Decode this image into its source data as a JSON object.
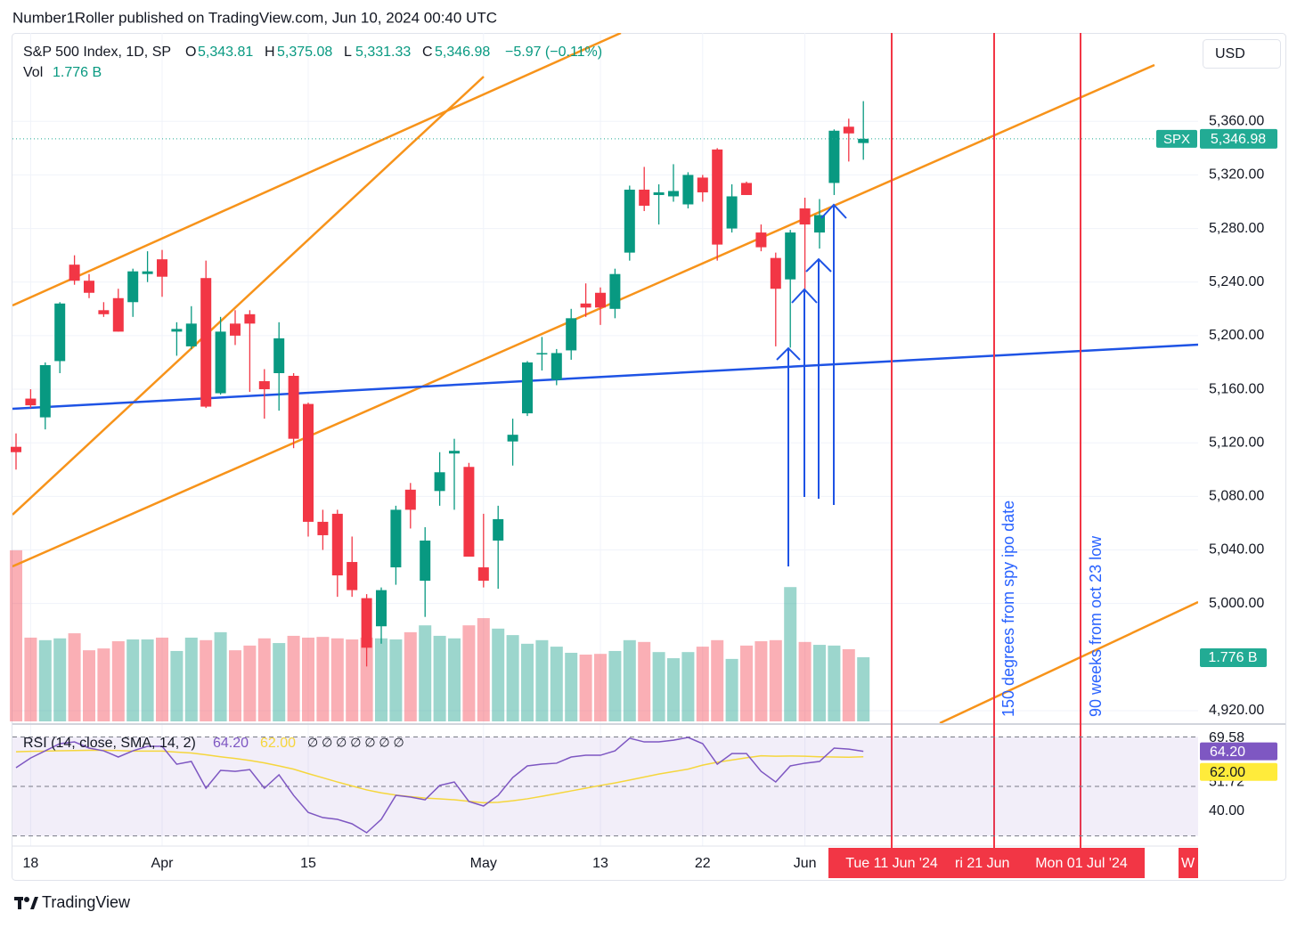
{
  "header": {
    "publisher": "Number1Roller published on TradingView.com, Jun 10, 2024 00:40 UTC"
  },
  "chart_data": {
    "type": "candlestick",
    "title": "S&P 500 Index, 1D, SP",
    "legend": {
      "o_label": "O",
      "o": "5,343.81",
      "h_label": "H",
      "h": "5,375.08",
      "l_label": "L",
      "l": "5,331.33",
      "c_label": "C",
      "c": "5,346.98",
      "change": "−5.97 (−0.11%)",
      "vol_label": "Vol",
      "vol": "1.776 B"
    },
    "currency": "USD",
    "symbol": "SPX",
    "last_label": "5,346.98",
    "categories": [
      null,
      "18",
      null,
      null,
      null,
      null,
      null,
      null,
      null,
      null,
      "Apr",
      null,
      null,
      null,
      null,
      null,
      null,
      null,
      null,
      null,
      "15",
      null,
      null,
      null,
      null,
      null,
      null,
      null,
      null,
      null,
      null,
      null,
      "May",
      null,
      null,
      null,
      null,
      null,
      null,
      null,
      "13",
      null,
      null,
      null,
      null,
      null,
      null,
      "22",
      null,
      null,
      null,
      null,
      null,
      null,
      "Jun",
      null,
      null,
      null,
      null
    ],
    "open": [
      5117,
      5153,
      5139,
      5181,
      5253,
      5241,
      5219,
      5228,
      5225,
      5246,
      5257,
      5203,
      5192,
      5243,
      5157,
      5209,
      5216,
      5166,
      5172,
      5170,
      5149,
      5061,
      5067,
      5031,
      5004,
      4983,
      5027,
      5085,
      5017,
      5084,
      5112,
      5102,
      5027,
      5047,
      5121,
      5142,
      5186,
      5167,
      5189,
      5224,
      5232,
      5220,
      5262,
      5309,
      5305,
      5304,
      5298,
      5318,
      5339,
      5280,
      5314,
      5277,
      5258,
      5242,
      5295,
      5277,
      5314,
      5356,
      5343.81
    ],
    "high": [
      5127,
      5160,
      5180,
      5225,
      5260,
      5246,
      5225,
      5235,
      5250,
      5263,
      5264,
      5210,
      5222,
      5256,
      5214,
      5219,
      5219,
      5175,
      5210,
      5172,
      5150,
      5070,
      5070,
      5050,
      5007,
      5012,
      5073,
      5090,
      5057,
      5113,
      5123,
      5105,
      5067,
      5073,
      5138,
      5181,
      5199,
      5190,
      5220,
      5239,
      5236,
      5250,
      5312,
      5326,
      5313,
      5328,
      5322,
      5320,
      5340,
      5313,
      5315,
      5283,
      5262,
      5279,
      5303,
      5302,
      5354,
      5362,
      5375.08
    ],
    "low": [
      5100,
      5146,
      5130,
      5172,
      5238,
      5228,
      5214,
      5203,
      5214,
      5240,
      5229,
      5185,
      5190,
      5146,
      5156,
      5193,
      5158,
      5138,
      5144,
      5116,
      5050,
      5040,
      5005,
      5005,
      4953,
      4970,
      5014,
      5056,
      4990,
      5073,
      5070,
      5035,
      5012,
      5011,
      5103,
      5140,
      5174,
      5163,
      5182,
      5214,
      5208,
      5213,
      5256,
      5293,
      5283,
      5300,
      5295,
      5300,
      5256,
      5277,
      5305,
      5263,
      5192,
      5191,
      5234,
      5265,
      5305,
      5330,
      5331.33
    ],
    "close": [
      5113,
      5148,
      5178,
      5224,
      5241,
      5232,
      5216,
      5203,
      5248,
      5248,
      5244,
      5205,
      5209,
      5147,
      5203,
      5200,
      5209,
      5160,
      5198,
      5123,
      5061,
      5051,
      5021,
      5010,
      4967,
      5010,
      5070,
      5070,
      5047,
      5098,
      5114,
      5035,
      5017,
      5063,
      5126,
      5180,
      5187,
      5187,
      5213,
      5221,
      5221,
      5246,
      5309,
      5297,
      5307,
      5308,
      5320,
      5307,
      5268,
      5304,
      5305,
      5266,
      5235,
      5277,
      5283,
      5290,
      5353,
      5351,
      5346.98
    ],
    "up_color": "#089981",
    "down_color": "#f23645",
    "ylim": [
      4912,
      5426
    ],
    "yticks": [
      {
        "value": 5360,
        "label": "5,360.00"
      },
      {
        "value": 5320,
        "label": "5,320.00"
      },
      {
        "value": 5280,
        "label": "5,280.00"
      },
      {
        "value": 5240,
        "label": "5,240.00"
      },
      {
        "value": 5200,
        "label": "5,200.00"
      },
      {
        "value": 5160,
        "label": "5,160.00"
      },
      {
        "value": 5120,
        "label": "5,120.00"
      },
      {
        "value": 5080,
        "label": "5,080.00"
      },
      {
        "value": 5040,
        "label": "5,040.00"
      },
      {
        "value": 5000,
        "label": "5,000.00"
      },
      {
        "value": 4920,
        "label": "4,920.00"
      }
    ],
    "grid": true,
    "volume": {
      "values": [
        4.74,
        2.32,
        2.25,
        2.3,
        2.44,
        1.97,
        2.02,
        2.22,
        2.27,
        2.27,
        2.32,
        1.95,
        2.32,
        2.25,
        2.47,
        1.97,
        2.1,
        2.3,
        2.17,
        2.37,
        2.32,
        2.34,
        2.3,
        2.27,
        2.32,
        2.3,
        2.27,
        2.47,
        2.66,
        2.37,
        2.3,
        2.66,
        2.86,
        2.57,
        2.39,
        2.15,
        2.25,
        2.07,
        1.9,
        1.85,
        1.87,
        1.95,
        2.25,
        2.2,
        1.92,
        1.75,
        1.92,
        2.07,
        2.25,
        1.73,
        2.1,
        2.22,
        2.25,
        3.72,
        2.2,
        2.12,
        2.1,
        2.0,
        1.776
      ],
      "ylim": [
        0,
        19.07
      ],
      "label": "1.776 B"
    },
    "rsi": {
      "title": "RSI (14, close, SMA, 14, 2)",
      "values": [
        57.6,
        61.5,
        64.4,
        67.3,
        68.0,
        65.5,
        64.4,
        61.9,
        64.4,
        66.2,
        66.2,
        59.0,
        60.1,
        49.3,
        56.5,
        56.1,
        56.8,
        49.3,
        54.7,
        46.4,
        39.5,
        37.4,
        36.7,
        34.9,
        31.3,
        36.7,
        46.4,
        45.7,
        44.6,
        50.4,
        51.8,
        43.9,
        42.1,
        46.4,
        53.6,
        58.3,
        59.0,
        59.4,
        61.9,
        62.6,
        62.6,
        64.4,
        69.5,
        68.0,
        68.0,
        68.7,
        69.8,
        67.3,
        59.0,
        63.3,
        63.3,
        56.1,
        51.8,
        58.3,
        59.4,
        60.1,
        65.5,
        65.1,
        64.2
      ],
      "sma": [
        64.0,
        64.2,
        64.3,
        64.4,
        64.5,
        64.6,
        64.6,
        64.5,
        64.3,
        64.3,
        64.3,
        63.9,
        63.5,
        62.8,
        62.0,
        61.3,
        60.5,
        59.5,
        58.3,
        57.0,
        55.2,
        53.5,
        51.8,
        50.2,
        48.6,
        47.4,
        46.5,
        45.9,
        45.3,
        45.0,
        44.6,
        44.0,
        43.4,
        43.6,
        44.2,
        45.0,
        46.0,
        47.1,
        48.2,
        49.3,
        50.4,
        51.4,
        52.6,
        53.8,
        55.0,
        56.0,
        57.0,
        58.6,
        59.8,
        60.7,
        61.6,
        62.4,
        62.2,
        62.3,
        62.2,
        62.0,
        61.9,
        61.8,
        62.0
      ],
      "color": "#7e57c2",
      "sma_color": "#f5d63d",
      "ylim": [
        27.7,
        74.5
      ],
      "levels": [
        70,
        50,
        30
      ],
      "yticks": [
        {
          "value": 69.58,
          "label": "69.58"
        },
        {
          "value": 51.72,
          "label": "51.72"
        },
        {
          "value": 40,
          "label": "40.00"
        }
      ],
      "value_label": "64.20",
      "sma_label": "62.00",
      "placeholders": "∅ ∅ ∅ ∅ ∅ ∅ ∅"
    },
    "annotations": [
      "150 degrees from spy ipo date",
      "90 weeks from oct 23 low"
    ],
    "future_dates": [
      "Tue 11 Jun '24",
      "ri 21 Jun",
      "Mon 01 Jul '24",
      "W"
    ]
  },
  "footer": {
    "brand": "TradingView"
  }
}
